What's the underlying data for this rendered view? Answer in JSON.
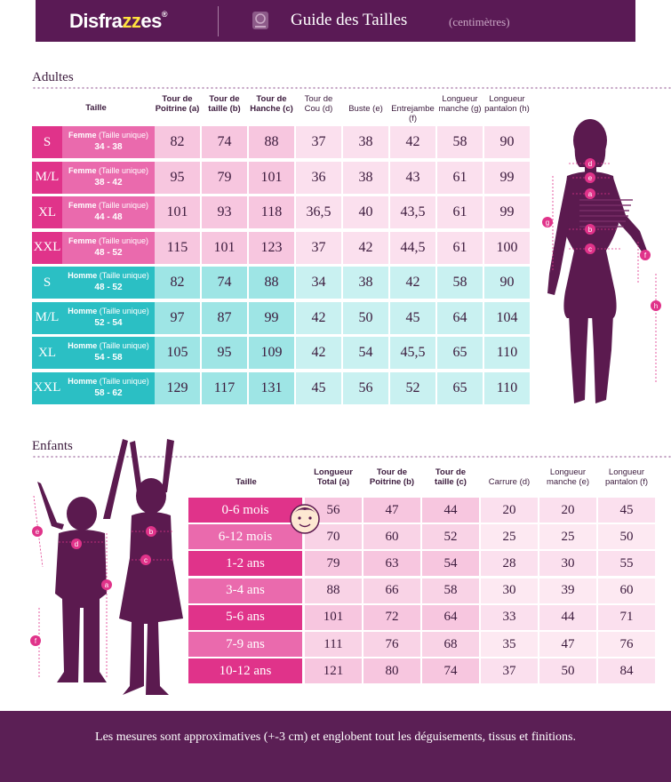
{
  "header": {
    "logo_prefix": "Disfra",
    "logo_zz": "zz",
    "logo_suffix": "es",
    "logo_reg": "®",
    "title": "Guide des Tailles",
    "subtitle": "(centimètres)"
  },
  "adults": {
    "section_title": "Adultes",
    "size_header": "Taille",
    "columns": [
      {
        "line1": "Tour de",
        "line2": "Poitrine (a)",
        "bold": true
      },
      {
        "line1": "Tour de",
        "line2": "taille (b)",
        "bold": true
      },
      {
        "line1": "Tour de",
        "line2": "Hanche (c)",
        "bold": true
      },
      {
        "line1": "Tour de",
        "line2": "Cou (d)",
        "bold": false
      },
      {
        "line1": "",
        "line2": "Buste (e)",
        "bold": false
      },
      {
        "line1": "",
        "line2": "Entrejambe (f)",
        "bold": false
      },
      {
        "line1": "Longueur",
        "line2": "manche (g)",
        "bold": false
      },
      {
        "line1": "Longueur",
        "line2": "pantalon (h)",
        "bold": false
      }
    ],
    "rows": [
      {
        "size": "S",
        "gender": "Femme",
        "note": "(Taille unique)",
        "range": "34 - 38",
        "values": [
          "82",
          "74",
          "88",
          "37",
          "38",
          "42",
          "58",
          "90"
        ]
      },
      {
        "size": "M/L",
        "gender": "Femme",
        "note": "(Taille unique)",
        "range": "38 - 42",
        "values": [
          "95",
          "79",
          "101",
          "36",
          "38",
          "43",
          "61",
          "99"
        ]
      },
      {
        "size": "XL",
        "gender": "Femme",
        "note": "(Taille unique)",
        "range": "44 - 48",
        "values": [
          "101",
          "93",
          "118",
          "36,5",
          "40",
          "43,5",
          "61",
          "99"
        ]
      },
      {
        "size": "XXL",
        "gender": "Femme",
        "note": "(Taille unique)",
        "range": "48 - 52",
        "values": [
          "115",
          "101",
          "123",
          "37",
          "42",
          "44,5",
          "61",
          "100"
        ]
      },
      {
        "size": "S",
        "gender": "Homme",
        "note": "(Taille unique)",
        "range": "48 - 52",
        "values": [
          "82",
          "74",
          "88",
          "34",
          "38",
          "42",
          "58",
          "90"
        ]
      },
      {
        "size": "M/L",
        "gender": "Homme",
        "note": "(Taille unique)",
        "range": "52 - 54",
        "values": [
          "97",
          "87",
          "99",
          "42",
          "50",
          "45",
          "64",
          "104"
        ]
      },
      {
        "size": "XL",
        "gender": "Homme",
        "note": "(Taille unique)",
        "range": "54 - 58",
        "values": [
          "105",
          "95",
          "109",
          "42",
          "54",
          "45,5",
          "65",
          "110"
        ]
      },
      {
        "size": "XXL",
        "gender": "Homme",
        "note": "(Taille unique)",
        "range": "58 - 62",
        "values": [
          "129",
          "117",
          "131",
          "45",
          "56",
          "52",
          "65",
          "110"
        ]
      }
    ],
    "figure_markers": [
      "d",
      "e",
      "a",
      "b",
      "c",
      "g",
      "f",
      "h"
    ]
  },
  "children": {
    "section_title": "Enfants",
    "size_header": "Taille",
    "columns": [
      {
        "line1": "Longueur",
        "line2": "Total (a)",
        "bold": true
      },
      {
        "line1": "Tour de",
        "line2": "Poitrine (b)",
        "bold": true
      },
      {
        "line1": "Tour de",
        "line2": "taille (c)",
        "bold": true
      },
      {
        "line1": "",
        "line2": "Carrure (d)",
        "bold": false
      },
      {
        "line1": "Longueur",
        "line2": "manche (e)",
        "bold": false
      },
      {
        "line1": "Longueur",
        "line2": "pantalon (f)",
        "bold": false
      }
    ],
    "rows": [
      {
        "size": "0-6  mois",
        "values": [
          "56",
          "47",
          "44",
          "20",
          "20",
          "45"
        ]
      },
      {
        "size": "6-12  mois",
        "values": [
          "70",
          "60",
          "52",
          "25",
          "25",
          "50"
        ]
      },
      {
        "size": "1-2  ans",
        "values": [
          "79",
          "63",
          "54",
          "28",
          "30",
          "55"
        ]
      },
      {
        "size": "3-4  ans",
        "values": [
          "88",
          "66",
          "58",
          "30",
          "39",
          "60"
        ]
      },
      {
        "size": "5-6  ans",
        "values": [
          "101",
          "72",
          "64",
          "33",
          "44",
          "71"
        ]
      },
      {
        "size": "7-9  ans",
        "values": [
          "111",
          "76",
          "68",
          "35",
          "47",
          "76"
        ]
      },
      {
        "size": "10-12  ans",
        "values": [
          "121",
          "80",
          "74",
          "37",
          "50",
          "84"
        ]
      }
    ],
    "figure_markers": [
      "e",
      "d",
      "b",
      "c",
      "a",
      "f"
    ]
  },
  "footer": {
    "text": "Les mesures sont approximatives (+-3 cm) et englobent tout les déguisements, tissus et finitions."
  },
  "colors": {
    "header_bg": "#5a1a55",
    "female_dark": "#e0338a",
    "female_mid": "#ea6aad",
    "female_light": "#f7c6df",
    "female_pale": "#fbe0ee",
    "male_dark": "#2bbfc4",
    "male_light": "#9ee5e5",
    "male_pale": "#c9f1f1",
    "figure": "#5b1a4f",
    "accent_yellow": "#ffe23f"
  }
}
